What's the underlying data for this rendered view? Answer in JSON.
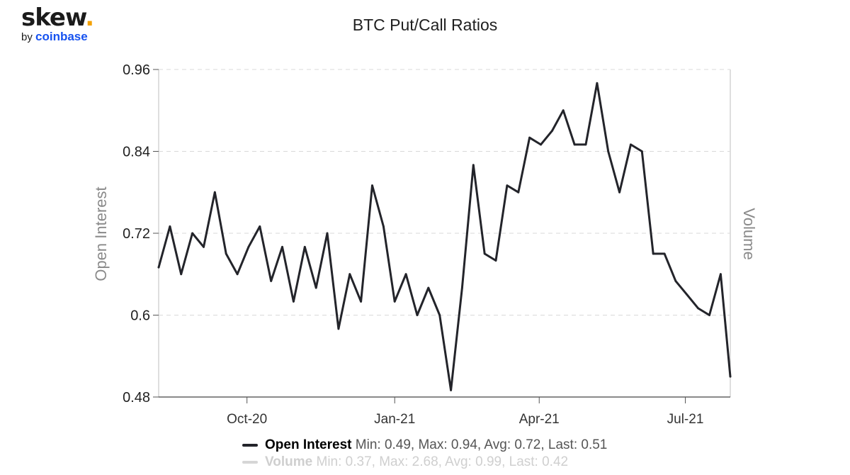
{
  "logo": {
    "word": "skew",
    "dot": ".",
    "by": "by",
    "brand": "coinbase"
  },
  "chart_data": {
    "type": "line",
    "title": "BTC Put/Call Ratios",
    "ylabel": "Open Interest",
    "y2label": "Volume",
    "ylim": [
      0.48,
      0.96
    ],
    "yticks": [
      0.48,
      0.6,
      0.72,
      0.84,
      0.96
    ],
    "ytick_labels": [
      "0.48",
      "0.6",
      "0.72",
      "0.84",
      "0.96"
    ],
    "xlim": [
      "2020-08-07",
      "2021-07-29"
    ],
    "xticks": [
      "2020-10-01",
      "2021-01-01",
      "2021-04-01",
      "2021-07-01"
    ],
    "xtick_labels": [
      "Oct-20",
      "Jan-21",
      "Apr-21",
      "Jul-21"
    ],
    "grid": true,
    "legend_position": "bottom",
    "series": [
      {
        "name": "Open Interest",
        "color": "#23242a",
        "active": true,
        "x": [
          "2020-08-07",
          "2020-08-14",
          "2020-08-21",
          "2020-08-28",
          "2020-09-04",
          "2020-09-11",
          "2020-09-18",
          "2020-09-25",
          "2020-10-02",
          "2020-10-09",
          "2020-10-16",
          "2020-10-23",
          "2020-10-30",
          "2020-11-06",
          "2020-11-13",
          "2020-11-20",
          "2020-11-27",
          "2020-12-04",
          "2020-12-11",
          "2020-12-18",
          "2020-12-25",
          "2021-01-01",
          "2021-01-08",
          "2021-01-15",
          "2021-01-22",
          "2021-01-29",
          "2021-02-05",
          "2021-02-12",
          "2021-02-19",
          "2021-02-26",
          "2021-03-05",
          "2021-03-12",
          "2021-03-19",
          "2021-03-26",
          "2021-04-02",
          "2021-04-09",
          "2021-04-16",
          "2021-04-23",
          "2021-04-30",
          "2021-05-07",
          "2021-05-14",
          "2021-05-21",
          "2021-05-28",
          "2021-06-04",
          "2021-06-11",
          "2021-06-18",
          "2021-06-25",
          "2021-07-02",
          "2021-07-09",
          "2021-07-16",
          "2021-07-23",
          "2021-07-29"
        ],
        "values": [
          0.67,
          0.73,
          0.66,
          0.72,
          0.7,
          0.78,
          0.69,
          0.66,
          0.7,
          0.73,
          0.65,
          0.7,
          0.62,
          0.7,
          0.64,
          0.72,
          0.58,
          0.66,
          0.62,
          0.79,
          0.73,
          0.62,
          0.66,
          0.6,
          0.64,
          0.6,
          0.49,
          0.64,
          0.82,
          0.69,
          0.68,
          0.79,
          0.78,
          0.86,
          0.85,
          0.87,
          0.9,
          0.85,
          0.85,
          0.94,
          0.84,
          0.78,
          0.85,
          0.84,
          0.69,
          0.69,
          0.65,
          0.63,
          0.61,
          0.6,
          0.66,
          0.51
        ],
        "stats": "Min: 0.49, Max: 0.94, Avg: 0.72, Last: 0.51"
      },
      {
        "name": "Volume",
        "color": "#d6d6d6",
        "active": false,
        "stats": "Min: 0.37, Max: 2.68, Avg: 0.99, Last: 0.42"
      }
    ]
  }
}
